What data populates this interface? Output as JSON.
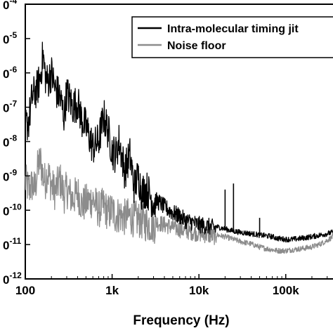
{
  "chart_data": {
    "type": "line",
    "title": "",
    "xlabel": "Frequency (Hz)",
    "ylabel": "",
    "x_scale": "log",
    "y_scale": "log",
    "xlim": [
      100,
      350000
    ],
    "ylim": [
      1e-12,
      0.0001
    ],
    "x_ticks": [
      {
        "value": 100,
        "label": "100"
      },
      {
        "value": 1000,
        "label": "1k"
      },
      {
        "value": 10000,
        "label": "10k"
      },
      {
        "value": 100000,
        "label": "100k"
      }
    ],
    "y_ticks": [
      {
        "value": 0.0001,
        "label": "0-4"
      },
      {
        "value": 1e-05,
        "label": "0-5"
      },
      {
        "value": 1e-06,
        "label": "0-6"
      },
      {
        "value": 1e-07,
        "label": "0-7"
      },
      {
        "value": 1e-08,
        "label": "0-8"
      },
      {
        "value": 1e-09,
        "label": "0-9"
      },
      {
        "value": 1e-10,
        "label": "0-10"
      },
      {
        "value": 1e-11,
        "label": "0-11"
      },
      {
        "value": 1e-12,
        "label": "0-12"
      }
    ],
    "grid": false,
    "legend": "top-right",
    "series": [
      {
        "name": "Intra-molecular timing jit",
        "color": "#000000",
        "x": [
          100,
          110,
          120,
          130,
          140,
          150,
          160,
          170,
          180,
          200,
          220,
          250,
          280,
          300,
          350,
          400,
          450,
          500,
          600,
          700,
          800,
          900,
          1000,
          1100,
          1200,
          1400,
          1600,
          1800,
          2000,
          2200,
          2500,
          3000,
          3500,
          4000,
          5000,
          6000,
          7000,
          8000,
          10000,
          13000,
          16000,
          20000,
          25000,
          30000,
          40000,
          50000,
          60000,
          70000,
          80000,
          100000,
          120000,
          150000,
          200000,
          250000,
          300000,
          350000
        ],
        "y": [
          4e-08,
          6e-08,
          3e-07,
          4e-07,
          6e-07,
          1.2e-06,
          5e-06,
          1.2e-06,
          8e-07,
          1.5e-06,
          5e-07,
          3e-07,
          8e-08,
          4e-07,
          1.5e-07,
          2e-07,
          6e-08,
          4e-08,
          1e-08,
          1.5e-08,
          8e-08,
          3e-08,
          8e-09,
          6e-09,
          1.5e-08,
          2e-09,
          6e-09,
          7e-10,
          1.5e-09,
          5e-10,
          6e-10,
          2.5e-10,
          2e-10,
          1.5e-10,
          1e-10,
          8e-11,
          6e-11,
          5.5e-11,
          4.5e-11,
          4e-11,
          3.5e-11,
          3e-11,
          2.6e-11,
          2.4e-11,
          2.2e-11,
          2e-11,
          1.9e-11,
          1.8e-11,
          1.6e-11,
          1.5e-11,
          1.5e-11,
          1.6e-11,
          1.8e-11,
          2e-11,
          2.2e-11,
          2.4e-11
        ]
      },
      {
        "name": "Noise floor",
        "color": "#8c8c8c",
        "x": [
          100,
          110,
          120,
          130,
          140,
          150,
          160,
          170,
          180,
          200,
          220,
          250,
          280,
          300,
          350,
          400,
          450,
          500,
          600,
          700,
          800,
          900,
          1000,
          1100,
          1200,
          1400,
          1600,
          1800,
          2000,
          2200,
          2500,
          3000,
          3500,
          4000,
          5000,
          6000,
          7000,
          8000,
          10000,
          13000,
          16000,
          20000,
          25000,
          30000,
          40000,
          50000,
          60000,
          70000,
          80000,
          100000,
          120000,
          150000,
          200000,
          250000,
          300000,
          350000
        ],
        "y": [
          1e-09,
          6e-10,
          8e-10,
          6e-10,
          3e-09,
          4e-09,
          1.5e-09,
          1e-09,
          2e-09,
          8e-10,
          5e-10,
          1.2e-09,
          4e-10,
          6e-10,
          3e-10,
          5e-10,
          2e-10,
          2.5e-10,
          3e-10,
          1.5e-10,
          2e-10,
          1.2e-10,
          1.5e-10,
          1e-10,
          1.1e-10,
          9e-11,
          1e-10,
          8e-11,
          8e-11,
          7e-11,
          6e-11,
          5.5e-11,
          5e-11,
          4.5e-11,
          3.8e-11,
          3.3e-11,
          3e-11,
          2.8e-11,
          2.5e-11,
          2.2e-11,
          2e-11,
          1.8e-11,
          1.5e-11,
          1.3e-11,
          1.1e-11,
          9e-12,
          8e-12,
          7.5e-12,
          7e-12,
          7e-12,
          7.5e-12,
          8e-12,
          9e-12,
          1.1e-11,
          1.4e-11,
          1.8e-11
        ]
      }
    ],
    "spikes": [
      {
        "series": 0,
        "x": 25000,
        "y": 6e-10
      },
      {
        "series": 0,
        "x": 20000,
        "y": 4e-10
      },
      {
        "series": 0,
        "x": 50000,
        "y": 6e-11
      }
    ]
  }
}
